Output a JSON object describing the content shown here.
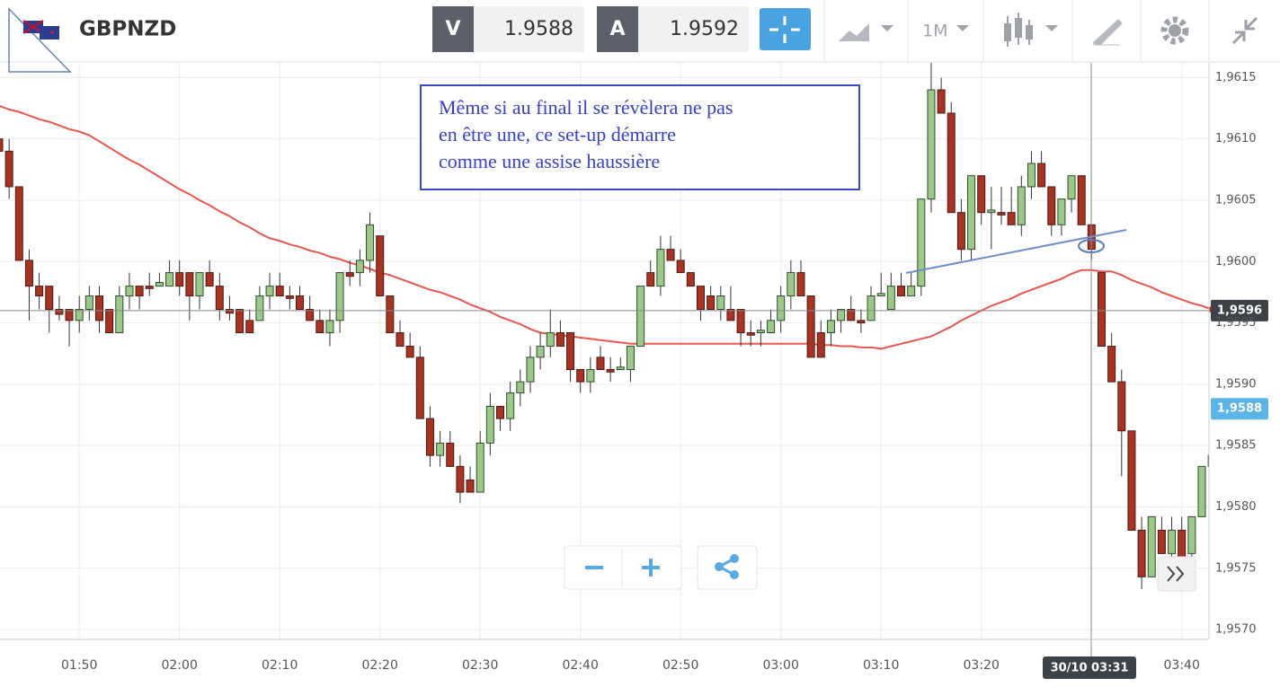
{
  "header": {
    "symbol": "GBPNZD",
    "bid_label": "V",
    "bid": "1.9588",
    "ask_label": "A",
    "ask": "1.9592",
    "timeframe": "1M"
  },
  "chart_data": {
    "type": "candlestick",
    "categories": [
      null,
      null,
      null,
      null,
      null,
      null,
      null,
      null,
      "01:50",
      null,
      null,
      null,
      null,
      null,
      null,
      null,
      null,
      null,
      "02:00",
      null,
      null,
      null,
      null,
      null,
      null,
      null,
      null,
      null,
      "02:10",
      null,
      null,
      null,
      null,
      null,
      null,
      null,
      null,
      null,
      "02:20",
      null,
      null,
      null,
      null,
      null,
      null,
      null,
      null,
      null,
      "02:30",
      null,
      null,
      null,
      null,
      null,
      null,
      null,
      null,
      null,
      "02:40",
      null,
      null,
      null,
      null,
      null,
      null,
      null,
      null,
      null,
      "02:50",
      null,
      null,
      null,
      null,
      null,
      null,
      null,
      null,
      null,
      "03:00",
      null,
      null,
      null,
      null,
      null,
      null,
      null,
      null,
      null,
      "03:10",
      null,
      null,
      null,
      null,
      null,
      null,
      null,
      null,
      null,
      "03:20",
      null,
      null,
      null,
      null,
      null,
      null,
      null,
      null,
      null,
      null,
      null,
      null,
      null,
      null,
      null,
      null,
      null,
      null,
      null,
      "03:40",
      null,
      null,
      null
    ],
    "open": [
      1.961,
      1.9609,
      1.96061,
      1.96001,
      1.9598,
      1.9598,
      1.95961,
      1.95961,
      1.95952,
      1.95961,
      1.95972,
      1.95961,
      1.95942,
      1.95972,
      1.9598,
      1.9598,
      1.9598,
      1.9598,
      1.95991,
      1.95991,
      1.95972,
      1.95991,
      1.9598,
      1.95961,
      1.95961,
      1.95952,
      1.95952,
      1.95972,
      1.9598,
      1.95972,
      1.95972,
      1.95961,
      1.95952,
      1.95942,
      1.95952,
      1.95991,
      1.95991,
      1.96001,
      1.96021,
      1.95972,
      1.95942,
      1.95931,
      1.95922,
      1.95872,
      1.95842,
      1.95852,
      1.95833,
      1.95822,
      1.95812,
      1.95852,
      1.95882,
      1.95872,
      1.95893,
      1.95902,
      1.95922,
      1.95931,
      1.95942,
      1.95942,
      1.95912,
      1.95902,
      1.95922,
      1.95912,
      1.95912,
      1.95912,
      1.95931,
      1.95991,
      1.9598,
      1.9601,
      1.96001,
      1.95991,
      1.9598,
      1.95972,
      1.95961,
      1.95961,
      1.95961,
      1.95942,
      1.95942,
      1.95942,
      1.95952,
      1.95972,
      1.95991,
      1.95972,
      1.95942,
      1.95942,
      1.95952,
      1.95961,
      1.95952,
      1.95952,
      1.95972,
      1.95961,
      1.9598,
      1.95972,
      1.9598,
      1.96051,
      1.9614,
      1.96121,
      1.9604,
      1.9601,
      1.9607,
      1.9604,
      1.9604,
      1.9604,
      1.9603,
      1.96061,
      1.9608,
      1.96061,
      1.9603,
      1.96051,
      1.9607,
      1.9603,
      1.95991,
      1.95931,
      1.95902,
      1.95862,
      1.95781,
      1.95743,
      1.95781,
      1.95762,
      1.95781,
      1.95762,
      1.95792,
      1.95833
    ],
    "high": [
      1.9611,
      1.961,
      1.96061,
      1.9601,
      1.95991,
      1.9598,
      1.95972,
      1.95961,
      1.95972,
      1.9598,
      1.9598,
      1.95961,
      1.9598,
      1.95991,
      1.9598,
      1.95991,
      1.95991,
      1.96001,
      1.96001,
      1.95991,
      1.95991,
      1.96001,
      1.95991,
      1.95972,
      1.95961,
      1.95961,
      1.9598,
      1.95991,
      1.95991,
      1.9598,
      1.9598,
      1.95972,
      1.95961,
      1.95961,
      1.95991,
      1.96001,
      1.9601,
      1.9604,
      1.96021,
      1.95972,
      1.95952,
      1.95942,
      1.95931,
      1.95882,
      1.95862,
      1.95862,
      1.95842,
      1.95833,
      1.95862,
      1.95893,
      1.95882,
      1.95902,
      1.95912,
      1.95931,
      1.95942,
      1.95961,
      1.95952,
      1.95942,
      1.95912,
      1.95922,
      1.95931,
      1.95922,
      1.95922,
      1.95931,
      1.9598,
      1.96001,
      1.96021,
      1.96021,
      1.9601,
      1.95991,
      1.9598,
      1.9598,
      1.9598,
      1.9598,
      1.95961,
      1.95952,
      1.95952,
      1.95961,
      1.9598,
      1.96001,
      1.96001,
      1.95972,
      1.95952,
      1.95961,
      1.95961,
      1.95972,
      1.95961,
      1.9598,
      1.95991,
      1.95991,
      1.95991,
      1.95991,
      1.96051,
      1.96162,
      1.9615,
      1.9613,
      1.96051,
      1.9607,
      1.9607,
      1.96061,
      1.96061,
      1.96061,
      1.9607,
      1.9609,
      1.9609,
      1.96061,
      1.96051,
      1.9607,
      1.9607,
      1.9603,
      1.95991,
      1.95942,
      1.95912,
      1.95862,
      1.95792,
      1.95792,
      1.95792,
      1.95792,
      1.95792,
      1.95792,
      1.95833,
      1.95842
    ],
    "low": [
      1.9609,
      1.96051,
      1.96001,
      1.95952,
      1.95961,
      1.95942,
      1.95952,
      1.95931,
      1.95942,
      1.95952,
      1.95942,
      1.95942,
      1.95942,
      1.95961,
      1.95961,
      1.95972,
      1.9598,
      1.9598,
      1.95972,
      1.95952,
      1.95961,
      1.9598,
      1.95952,
      1.95952,
      1.95942,
      1.95942,
      1.95952,
      1.95961,
      1.95972,
      1.95961,
      1.95961,
      1.95952,
      1.95942,
      1.95931,
      1.95942,
      1.9598,
      1.9598,
      1.95991,
      1.95972,
      1.95942,
      1.95931,
      1.95922,
      1.95872,
      1.95833,
      1.95833,
      1.95833,
      1.95803,
      1.95812,
      1.95812,
      1.95842,
      1.95862,
      1.95862,
      1.95882,
      1.95893,
      1.95912,
      1.95922,
      1.95931,
      1.95902,
      1.95893,
      1.95893,
      1.95912,
      1.95902,
      1.95912,
      1.95902,
      1.95931,
      1.9598,
      1.95972,
      1.96001,
      1.95991,
      1.9598,
      1.95952,
      1.95961,
      1.95952,
      1.95952,
      1.95931,
      1.95931,
      1.95931,
      1.95942,
      1.95942,
      1.95961,
      1.95972,
      1.95922,
      1.95922,
      1.95931,
      1.95942,
      1.95952,
      1.95942,
      1.95952,
      1.95972,
      1.95961,
      1.95972,
      1.95972,
      1.95972,
      1.9604,
      1.96121,
      1.9604,
      1.96001,
      1.96001,
      1.9603,
      1.9601,
      1.9603,
      1.9603,
      1.96021,
      1.96051,
      1.96061,
      1.96021,
      1.96021,
      1.9604,
      1.9603,
      1.96001,
      1.95931,
      1.95902,
      1.95825,
      1.95781,
      1.95733,
      1.95743,
      1.95762,
      1.95752,
      1.9574,
      1.95752,
      1.95792,
      1.95833
    ],
    "close": [
      1.9609,
      1.96061,
      1.96001,
      1.9598,
      1.95972,
      1.95961,
      1.95957,
      1.95952,
      1.95961,
      1.95972,
      1.95952,
      1.95942,
      1.95972,
      1.9598,
      1.95972,
      1.95978,
      1.95983,
      1.95991,
      1.9598,
      1.95972,
      1.95991,
      1.9598,
      1.95961,
      1.95958,
      1.95942,
      1.95942,
      1.95972,
      1.9598,
      1.95972,
      1.9597,
      1.95961,
      1.95952,
      1.95942,
      1.95952,
      1.95991,
      1.95988,
      1.96001,
      1.9603,
      1.95972,
      1.95942,
      1.95931,
      1.95922,
      1.95872,
      1.95842,
      1.95852,
      1.95833,
      1.95812,
      1.95812,
      1.95852,
      1.95882,
      1.95872,
      1.95893,
      1.95902,
      1.95922,
      1.95931,
      1.95942,
      1.95931,
      1.95912,
      1.95902,
      1.95912,
      1.95912,
      1.9591,
      1.95914,
      1.95931,
      1.9598,
      1.9598,
      1.9601,
      1.96001,
      1.95991,
      1.9598,
      1.95961,
      1.95961,
      1.95972,
      1.95952,
      1.95942,
      1.9594,
      1.95944,
      1.95952,
      1.95972,
      1.95991,
      1.95972,
      1.95922,
      1.95922,
      1.95952,
      1.95961,
      1.95952,
      1.9595,
      1.95972,
      1.95974,
      1.9598,
      1.95972,
      1.9598,
      1.96051,
      1.9614,
      1.96121,
      1.9604,
      1.9601,
      1.9607,
      1.9604,
      1.96042,
      1.96038,
      1.9603,
      1.96061,
      1.9608,
      1.96061,
      1.9603,
      1.96051,
      1.9607,
      1.9603,
      1.9601,
      1.95931,
      1.95902,
      1.95862,
      1.95781,
      1.95743,
      1.95792,
      1.95762,
      1.95781,
      1.95752,
      1.95792,
      1.95833,
      1.95842
    ],
    "up_color": "#9cc98a",
    "down_color": "#a93323",
    "moving_average": {
      "color": "#e8574f",
      "values": [
        1.96127,
        1.96124,
        1.96122,
        1.96119,
        1.96116,
        1.96114,
        1.96111,
        1.96108,
        1.96106,
        1.96103,
        1.96098,
        1.96093,
        1.96088,
        1.96083,
        1.96079,
        1.96074,
        1.96069,
        1.96064,
        1.96059,
        1.96055,
        1.9605,
        1.96046,
        1.96041,
        1.96037,
        1.96032,
        1.96028,
        1.96023,
        1.96019,
        1.96017,
        1.96014,
        1.96012,
        1.96009,
        1.96007,
        1.96004,
        1.96002,
        1.95999,
        1.95997,
        1.95994,
        1.95991,
        1.95989,
        1.95986,
        1.95983,
        1.9598,
        1.95977,
        1.95975,
        1.95972,
        1.95969,
        1.95965,
        1.95962,
        1.95959,
        1.95955,
        1.95952,
        1.95949,
        1.95945,
        1.95942,
        1.95941,
        1.9594,
        1.95939,
        1.95938,
        1.95937,
        1.95936,
        1.95935,
        1.95934,
        1.95933,
        1.95933,
        1.95933,
        1.95933,
        1.95933,
        1.95933,
        1.95933,
        1.95933,
        1.95933,
        1.95933,
        1.95933,
        1.95933,
        1.95933,
        1.95933,
        1.95933,
        1.95933,
        1.95933,
        1.95933,
        1.95933,
        1.95932,
        1.95932,
        1.95931,
        1.95931,
        1.9593,
        1.9593,
        1.95929,
        1.95931,
        1.95933,
        1.95935,
        1.95937,
        1.95939,
        1.95943,
        1.95947,
        1.95952,
        1.95956,
        1.9596,
        1.95964,
        1.95967,
        1.9597,
        1.95974,
        1.95977,
        1.9598,
        1.95983,
        1.95986,
        1.9599,
        1.95993,
        1.95993,
        1.95992,
        1.95992,
        1.95989,
        1.95985,
        1.95982,
        1.95979,
        1.95975,
        1.95972,
        1.95969,
        1.95966,
        1.95964,
        1.95961
      ]
    },
    "ylim": [
      1.95692,
      1.96162
    ],
    "yticks": [
      {
        "value": 1.957,
        "label": "1,9570"
      },
      {
        "value": 1.9575,
        "label": "1,9575"
      },
      {
        "value": 1.958,
        "label": "1,9580"
      },
      {
        "value": 1.9585,
        "label": "1,9585"
      },
      {
        "value": 1.959,
        "label": "1,9590"
      },
      {
        "value": 1.9595,
        "label": "1,9595"
      },
      {
        "value": 1.96,
        "label": "1,9600"
      },
      {
        "value": 1.9605,
        "label": "1,9605"
      },
      {
        "value": 1.961,
        "label": "1,9610"
      },
      {
        "value": 1.9615,
        "label": "1,9615"
      }
    ],
    "grid": true,
    "crosshair": {
      "time_label": "30/10 03:31",
      "price": {
        "value": 1.9596,
        "label": "1,9596"
      }
    },
    "bid_line": {
      "value": 1.9588,
      "label": "1,9588",
      "color": "#5bb4e5"
    },
    "annotation": [
      "Même si au final il se révèlera ne pas",
      "en être une, ce set-up démarre",
      "comme une assise haussière"
    ]
  }
}
